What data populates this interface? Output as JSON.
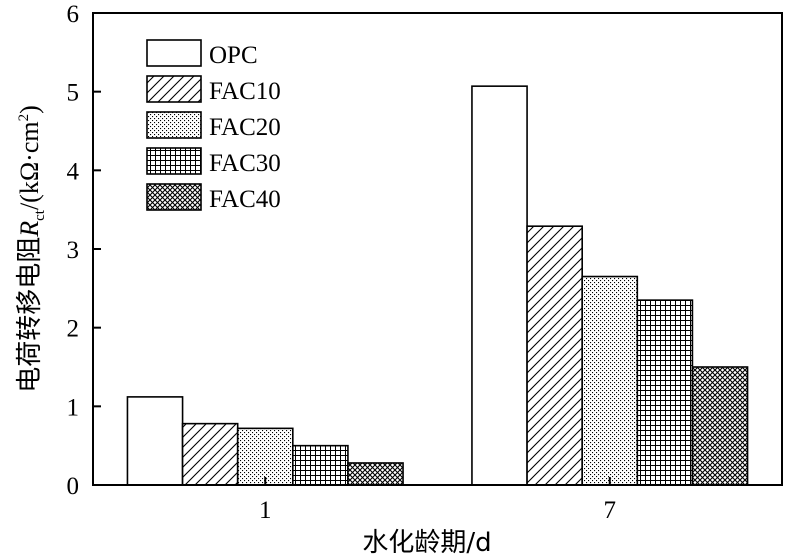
{
  "chart_data": {
    "type": "bar",
    "title": "",
    "xlabel": "水化龄期/d",
    "ylabel": "电荷转移电阻Rct/(kΩ·cm²)",
    "ylabel_parts": {
      "prefix": "电荷转移电阻",
      "symbol": "R",
      "subscript": "ct",
      "units_open": "/(kΩ·cm",
      "units_power": "2",
      "units_close": ")"
    },
    "categories": [
      "1",
      "7"
    ],
    "ylim": [
      0,
      6
    ],
    "yticks": [
      "0",
      "1",
      "2",
      "3",
      "4",
      "5",
      "6"
    ],
    "grid": false,
    "legend_position": "top-left",
    "series": [
      {
        "name": "OPC",
        "pattern": "none",
        "values": [
          1.12,
          5.07
        ]
      },
      {
        "name": "FAC10",
        "pattern": "diagonal-hatch",
        "values": [
          0.78,
          3.29
        ]
      },
      {
        "name": "FAC20",
        "pattern": "dots",
        "values": [
          0.72,
          2.65
        ]
      },
      {
        "name": "FAC30",
        "pattern": "grid",
        "values": [
          0.5,
          2.35
        ]
      },
      {
        "name": "FAC40",
        "pattern": "crosshatch",
        "values": [
          0.28,
          1.5
        ]
      }
    ]
  }
}
